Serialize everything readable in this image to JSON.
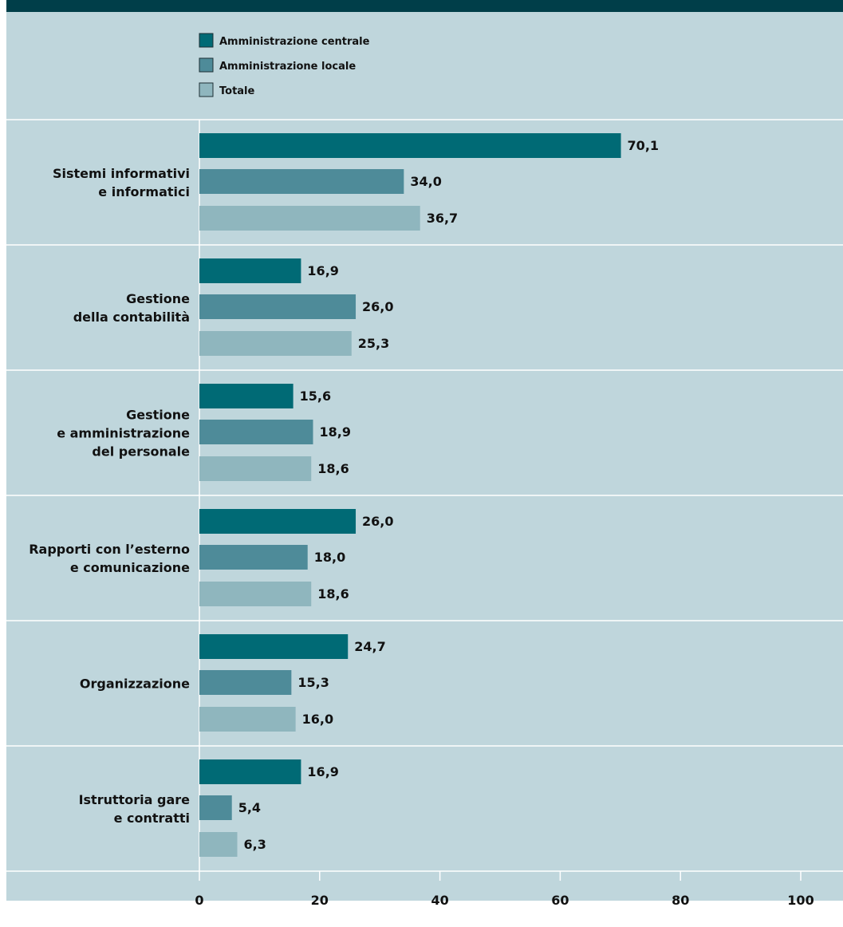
{
  "colors": {
    "background": "#bfd6dc",
    "header": "#003e49",
    "gridline": "#ffffff",
    "text": "#111111"
  },
  "chart_data": {
    "type": "bar",
    "orientation": "horizontal",
    "categories": [
      [
        "Sistemi informativi",
        "e informatici"
      ],
      [
        "Gestione",
        "della contabilità"
      ],
      [
        "Gestione",
        "e amministrazione",
        "del personale"
      ],
      [
        "Rapporti con l’esterno",
        "e comunicazione"
      ],
      [
        "Organizzazione"
      ],
      [
        "Istruttoria gare",
        "e contratti"
      ]
    ],
    "series": [
      {
        "name": "Amministrazione centrale",
        "color": "#006a75",
        "values": [
          70.1,
          16.9,
          15.6,
          26.0,
          24.7,
          16.9
        ],
        "labels": [
          "70,1",
          "16,9",
          "15,6",
          "26,0",
          "24,7",
          "16,9"
        ]
      },
      {
        "name": "Amministrazione locale",
        "color": "#4e8b99",
        "values": [
          34.0,
          26.0,
          18.9,
          18.0,
          15.3,
          5.4
        ],
        "labels": [
          "34,0",
          "26,0",
          "18,9",
          "18,0",
          "15,3",
          "5,4"
        ]
      },
      {
        "name": "Totale",
        "color": "#8fb6be",
        "values": [
          36.7,
          25.3,
          18.6,
          18.6,
          16.0,
          6.3
        ],
        "labels": [
          "36,7",
          "25,3",
          "18,6",
          "18,6",
          "16,0",
          "6,3"
        ]
      }
    ],
    "xlim": [
      0,
      100
    ],
    "xticks": [
      0,
      20,
      40,
      60,
      80,
      100
    ],
    "legend_position": "top",
    "grid": true
  }
}
